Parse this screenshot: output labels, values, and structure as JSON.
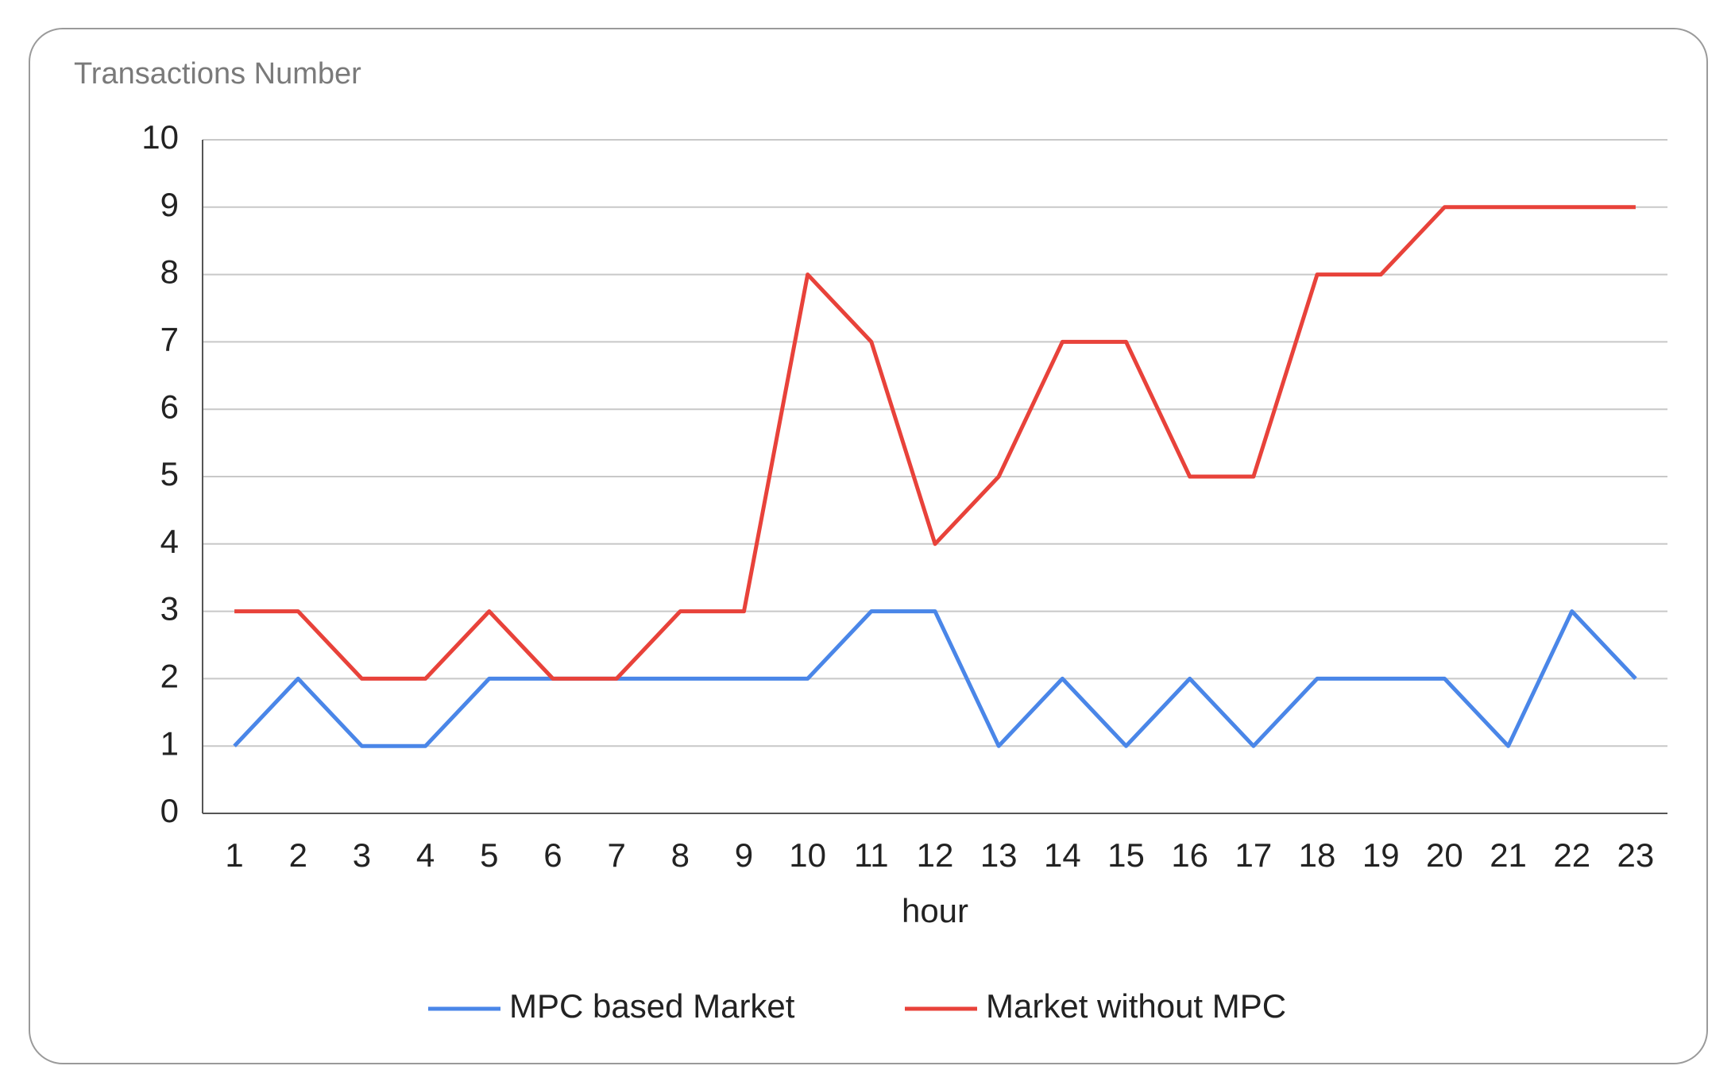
{
  "chart_data": {
    "type": "line",
    "title": "Transactions Number",
    "x_label": "hour",
    "categories": [
      "1",
      "2",
      "3",
      "4",
      "5",
      "6",
      "7",
      "8",
      "9",
      "10",
      "11",
      "12",
      "13",
      "14",
      "15",
      "16",
      "17",
      "18",
      "19",
      "20",
      "21",
      "22",
      "23"
    ],
    "series": [
      {
        "name": "MPC based Market",
        "color": "#4a86e8",
        "values": [
          1,
          2,
          1,
          1,
          2,
          2,
          2,
          2,
          2,
          2,
          3,
          3,
          1,
          2,
          1,
          2,
          1,
          2,
          2,
          2,
          1,
          3,
          2
        ]
      },
      {
        "name": "Market without MPC",
        "color": "#e8423a",
        "values": [
          3,
          3,
          2,
          2,
          3,
          2,
          2,
          3,
          3,
          8,
          7,
          4,
          5,
          7,
          7,
          5,
          5,
          8,
          8,
          9,
          9,
          9,
          9
        ]
      }
    ],
    "ylim": [
      0,
      10
    ],
    "yticks": [
      0,
      1,
      2,
      3,
      4,
      5,
      6,
      7,
      8,
      9,
      10
    ],
    "grid": true,
    "legend": "bottom"
  }
}
